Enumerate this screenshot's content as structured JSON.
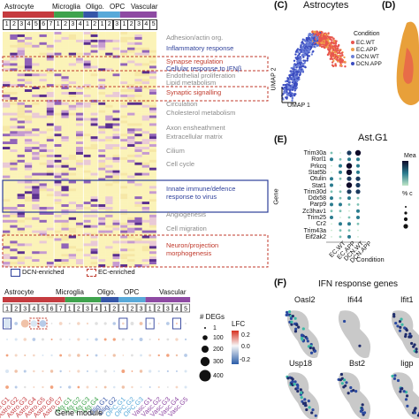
{
  "heatmap_top": {
    "cell_types": [
      {
        "name": "Astrocyte",
        "color": "#c53b3f",
        "n": 7
      },
      {
        "name": "Microglia",
        "color": "#3fa34d",
        "n": 4
      },
      {
        "name": "Oligo.",
        "color": "#3556a8",
        "n": 2
      },
      {
        "name": "OPC",
        "color": "#58a9d9",
        "n": 3
      },
      {
        "name": "Vascular",
        "color": "#8e4aa3",
        "n": 5
      }
    ],
    "module_numbers": [
      "1",
      "2",
      "3",
      "4",
      "5",
      "6",
      "7",
      "1",
      "2",
      "3",
      "4",
      "1",
      "2",
      "1",
      "2",
      "3",
      "1",
      "2",
      "3",
      "4",
      "5"
    ],
    "terms": [
      {
        "text": "Adhesion/actin org.",
        "style": "gray"
      },
      {
        "text": "Inflammatory response",
        "style": "blue"
      },
      {
        "text": "Synapse regulation",
        "style": "red"
      },
      {
        "text": "Cellular response to IFNβ",
        "style": "blue"
      },
      {
        "text": "Endothelial proliferation",
        "style": "gray"
      },
      {
        "text": "Lipid metabolism",
        "style": "gray"
      },
      {
        "text": "Synaptic signalling",
        "style": "red"
      },
      {
        "text": "Circulation",
        "style": "gray"
      },
      {
        "text": "Cholesterol metabolism",
        "style": "gray"
      },
      {
        "text": "Axon ensheathment",
        "style": "gray"
      },
      {
        "text": "Extracellular matrix",
        "style": "gray"
      },
      {
        "text": "Cilium",
        "style": "gray"
      },
      {
        "text": "Cell cycle",
        "style": "gray"
      },
      {
        "text": "Innate immune/defence",
        "style": "blue"
      },
      {
        "text": "response to virus",
        "style": "blue"
      },
      {
        "text": "Angiogenesis",
        "style": "gray"
      },
      {
        "text": "Cell migration",
        "style": "gray"
      },
      {
        "text": "Neuron/projection",
        "style": "red"
      },
      {
        "text": "morphogenesis",
        "style": "red"
      }
    ],
    "legend": {
      "dcn": "DCN-enriched",
      "ec": "EC-enriched"
    }
  },
  "dotplot_bottom": {
    "legend_degs_title": "# DEGs",
    "legend_degs_values": [
      "1",
      "100",
      "200",
      "300",
      "400"
    ],
    "legend_lfc_title": "LFC",
    "legend_lfc_values": [
      "0.2",
      "0.0",
      "-0.2"
    ],
    "xlabel": "Gene module",
    "modules": [
      "Astro.G1",
      "Astro.G2",
      "Astro.G3",
      "Astro.G4",
      "Astro.G5",
      "Astro.G6",
      "Astro.G7",
      "Mg.G1",
      "Mg.G2",
      "Mg.G3",
      "Mg.G4",
      "Olig.G1",
      "Olig.G2",
      "OPC.G1",
      "OPC.G2",
      "OPC.G3",
      "Vasc.G1",
      "Vasc.G2",
      "Vasc.G3",
      "Vasc.G4",
      "Vasc.G5"
    ]
  },
  "panel_c": {
    "letter": "(C)",
    "title": "Astrocytes",
    "xlabel": "UMAP 1",
    "ylabel": "UMAP 2",
    "legend_title": "Condition",
    "conditions": [
      {
        "name": "EC.WT",
        "color": "#e8554e"
      },
      {
        "name": "EC.APP",
        "color": "#f0a04b"
      },
      {
        "name": "DCN.WT",
        "color": "#6b7fd7"
      },
      {
        "name": "DCN.APP",
        "color": "#3b4cc0"
      }
    ]
  },
  "panel_d": {
    "letter": "(D)"
  },
  "panel_e": {
    "letter": "(E)",
    "title": "Ast.G1",
    "ylabel": "Gene",
    "xlabel": "Condition",
    "genes": [
      "Trim30a",
      "Rorl1",
      "Prkcq",
      "Stat5b",
      "Otulin",
      "Stat1",
      "Trim30d",
      "Ddx58",
      "Parp9",
      "Zc3hav1",
      "Trim25",
      "Cr2",
      "Trim43a",
      "Eif2ak2"
    ],
    "conditions": [
      "EC.WT",
      "EC.APP",
      "DCN.WT",
      "DCN.APP"
    ],
    "legend_mean": "Mea",
    "legend_pct": "% c"
  },
  "panel_f": {
    "letter": "(F)",
    "title": "IFN response genes",
    "genes": [
      "Oasl2",
      "Ifi44",
      "Ifit1",
      "Usp18",
      "Bst2",
      "Iigp"
    ]
  }
}
